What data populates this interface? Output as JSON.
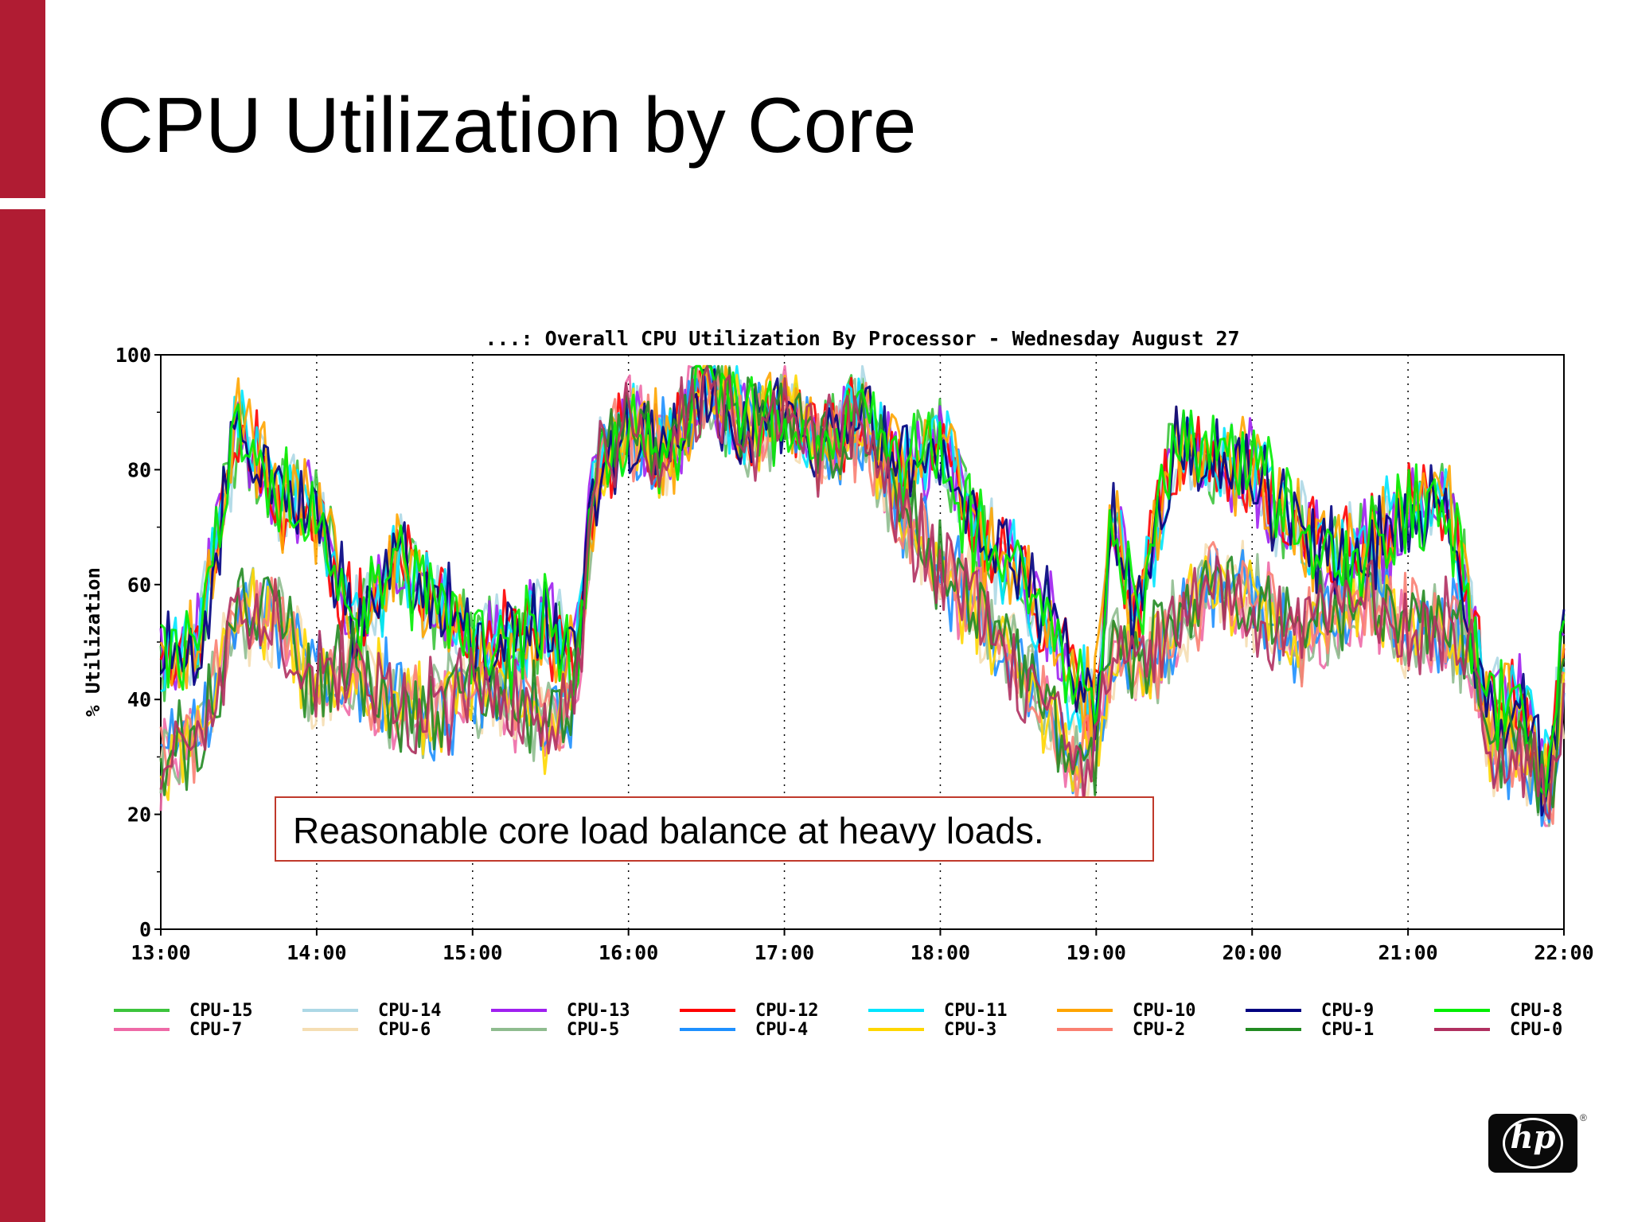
{
  "slide": {
    "title": "CPU Utilization by Core",
    "callout": "Reasonable core load balance at heavy loads.",
    "logo_text": "hp",
    "logo_mark": "®"
  },
  "colors": {
    "accent_bar": "#b01c33",
    "callout_border": "#c0392b"
  },
  "chart_data": {
    "type": "line",
    "title": "...: Overall CPU Utilization By Processor - Wednesday August 27",
    "xlabel": "",
    "ylabel": "% Utilization",
    "x_ticks": [
      "13:00",
      "14:00",
      "15:00",
      "16:00",
      "17:00",
      "18:00",
      "19:00",
      "20:00",
      "21:00",
      "22:00"
    ],
    "y_ticks": [
      0,
      20,
      40,
      60,
      80,
      100
    ],
    "ylim": [
      0,
      100
    ],
    "xlim_hours": [
      13.0,
      22.0
    ],
    "grid": "vertical dotted at hour ticks",
    "legend_position": "bottom",
    "groups": {
      "high": {
        "x_hours": [
          13.0,
          13.25,
          13.5,
          13.75,
          14.0,
          14.25,
          14.5,
          14.75,
          15.0,
          15.25,
          15.5,
          15.65,
          15.8,
          16.0,
          16.25,
          16.5,
          16.75,
          17.0,
          17.25,
          17.5,
          17.75,
          18.0,
          18.25,
          18.5,
          18.7,
          18.85,
          19.0,
          19.1,
          19.25,
          19.5,
          19.75,
          20.0,
          20.25,
          20.5,
          20.75,
          21.0,
          21.25,
          21.4,
          21.5,
          21.75,
          21.9,
          22.0
        ],
        "y_values": [
          46,
          50,
          88,
          75,
          72,
          52,
          64,
          57,
          51,
          49,
          53,
          45,
          80,
          88,
          83,
          96,
          87,
          90,
          85,
          90,
          80,
          85,
          68,
          62,
          55,
          42,
          38,
          75,
          52,
          84,
          82,
          80,
          70,
          65,
          67,
          72,
          75,
          55,
          38,
          40,
          25,
          50
        ]
      },
      "low": {
        "x_hours": [
          13.0,
          13.25,
          13.5,
          13.75,
          14.0,
          14.25,
          14.5,
          14.75,
          15.0,
          15.25,
          15.5,
          15.65,
          15.8,
          16.0,
          16.25,
          16.5,
          16.75,
          17.0,
          17.25,
          17.5,
          17.75,
          18.0,
          18.25,
          18.5,
          18.7,
          18.85,
          19.0,
          19.1,
          19.25,
          19.5,
          19.75,
          20.0,
          20.25,
          20.5,
          20.75,
          21.0,
          21.25,
          21.4,
          21.5,
          21.75,
          21.9,
          22.0
        ],
        "y_values": [
          30,
          33,
          55,
          55,
          43,
          45,
          40,
          38,
          42,
          40,
          36,
          40,
          80,
          88,
          83,
          97,
          87,
          90,
          84,
          88,
          73,
          62,
          56,
          45,
          38,
          28,
          30,
          48,
          45,
          52,
          60,
          58,
          50,
          55,
          58,
          52,
          52,
          50,
          32,
          30,
          22,
          40
        ]
      }
    },
    "series": [
      {
        "name": "CPU-15",
        "color": "#3cc43c",
        "group": "high"
      },
      {
        "name": "CPU-7",
        "color": "#ee6aa7",
        "group": "low"
      },
      {
        "name": "CPU-14",
        "color": "#add8e6",
        "group": "high"
      },
      {
        "name": "CPU-6",
        "color": "#f5deb3",
        "group": "low"
      },
      {
        "name": "CPU-13",
        "color": "#a020f0",
        "group": "high"
      },
      {
        "name": "CPU-5",
        "color": "#8fbc8f",
        "group": "low"
      },
      {
        "name": "CPU-12",
        "color": "#ff0000",
        "group": "high"
      },
      {
        "name": "CPU-4",
        "color": "#1e90ff",
        "group": "low"
      },
      {
        "name": "CPU-11",
        "color": "#00e5ff",
        "group": "high"
      },
      {
        "name": "CPU-3",
        "color": "#ffd700",
        "group": "low"
      },
      {
        "name": "CPU-10",
        "color": "#ffa500",
        "group": "high"
      },
      {
        "name": "CPU-2",
        "color": "#fa8072",
        "group": "low"
      },
      {
        "name": "CPU-9",
        "color": "#000080",
        "group": "high"
      },
      {
        "name": "CPU-1",
        "color": "#228b22",
        "group": "low"
      },
      {
        "name": "CPU-8",
        "color": "#00ee00",
        "group": "high"
      },
      {
        "name": "CPU-0",
        "color": "#b03060",
        "group": "low"
      }
    ]
  }
}
